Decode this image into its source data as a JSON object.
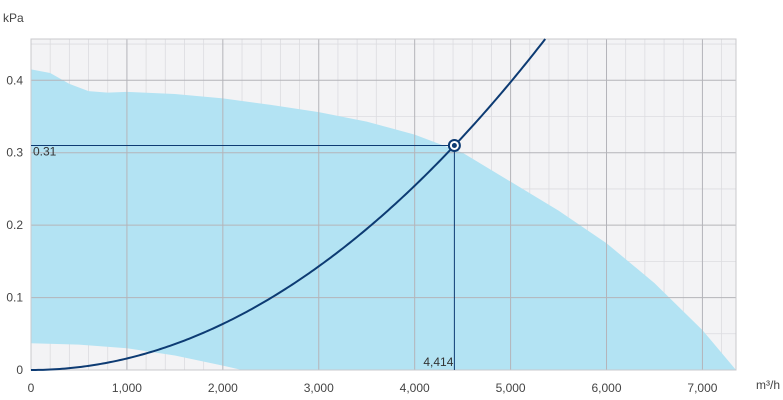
{
  "chart_data": {
    "type": "area",
    "xlabel": "m³/h",
    "ylabel": "kPa",
    "xlim": [
      0,
      7350
    ],
    "ylim": [
      0,
      0.457
    ],
    "grid": true,
    "x_ticks": [
      0,
      1000,
      2000,
      3000,
      4000,
      5000,
      6000,
      7000
    ],
    "x_tick_labels": [
      "0",
      "1,000",
      "2,000",
      "3,000",
      "4,000",
      "5,000",
      "6,000",
      "7,000"
    ],
    "y_ticks": [
      0,
      0.1,
      0.2,
      0.3,
      0.4
    ],
    "y_tick_labels": [
      "0",
      "0.1",
      "0.2",
      "0.3",
      "0.4"
    ],
    "operating_range": {
      "upper": [
        [
          0,
          0.415
        ],
        [
          200,
          0.41
        ],
        [
          400,
          0.395
        ],
        [
          600,
          0.385
        ],
        [
          800,
          0.383
        ],
        [
          1000,
          0.384
        ],
        [
          1500,
          0.381
        ],
        [
          2000,
          0.375
        ],
        [
          2500,
          0.366
        ],
        [
          3000,
          0.356
        ],
        [
          3500,
          0.343
        ],
        [
          4000,
          0.325
        ],
        [
          4500,
          0.3
        ],
        [
          5000,
          0.26
        ],
        [
          5500,
          0.22
        ],
        [
          6000,
          0.175
        ],
        [
          6500,
          0.12
        ],
        [
          7000,
          0.055
        ],
        [
          7350,
          0
        ]
      ],
      "lower": [
        [
          0,
          0.037
        ],
        [
          500,
          0.035
        ],
        [
          1000,
          0.03
        ],
        [
          1500,
          0.02
        ],
        [
          2000,
          0.006
        ],
        [
          2200,
          0
        ]
      ],
      "color": "#b3e3f3"
    },
    "system_curve": {
      "k": 1.59e-08,
      "exponent": 2,
      "x_max": 5400,
      "color": "#0d3b73"
    },
    "operating_point": {
      "x": 4414,
      "y": 0.31,
      "x_label": "4,414",
      "y_label": "0.31"
    }
  }
}
